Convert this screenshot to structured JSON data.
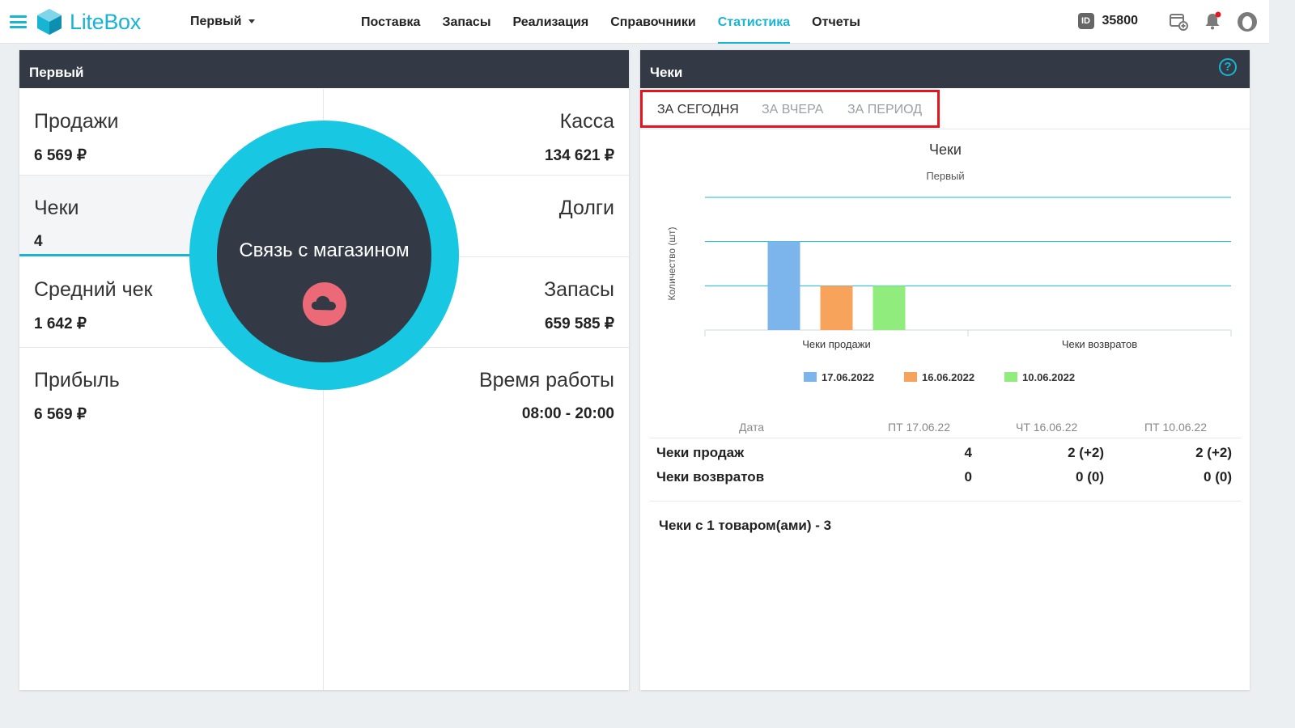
{
  "app": {
    "logo_text": "LiteBox",
    "store_selector": "Первый",
    "nav": [
      {
        "label": "Поставка",
        "active": false
      },
      {
        "label": "Запасы",
        "active": false
      },
      {
        "label": "Реализация",
        "active": false
      },
      {
        "label": "Справочники",
        "active": false
      },
      {
        "label": "Статистика",
        "active": true
      },
      {
        "label": "Отчеты",
        "active": false
      }
    ],
    "id_badge": "ID",
    "id_value": "35800",
    "accent_color": "#18b4d4",
    "header_color": "#343a45",
    "icons": [
      "menu-icon",
      "id-icon",
      "register-add-icon",
      "bell-icon",
      "profile-icon"
    ]
  },
  "left_panel": {
    "title": "Первый",
    "cells": {
      "sales": {
        "label": "Продажи",
        "value": "6 569 ₽"
      },
      "cash": {
        "label": "Касса",
        "value": "134 621 ₽"
      },
      "checks": {
        "label": "Чеки",
        "value": "4"
      },
      "debts": {
        "label": "Долги",
        "value": ""
      },
      "avg_check": {
        "label": "Средний чек",
        "value": "1 642 ₽"
      },
      "stock": {
        "label": "Запасы",
        "value": "659 585 ₽"
      },
      "profit": {
        "label": "Прибыль",
        "value": "6 569 ₽"
      },
      "hours": {
        "label": "Время работы",
        "value": "08:00 - 20:00"
      }
    },
    "store_link": {
      "label": "Связь с магазином",
      "icon": "cloud-icon"
    }
  },
  "right_panel": {
    "title": "Чеки",
    "tabs": [
      {
        "label": "ЗА СЕГОДНЯ",
        "active": true
      },
      {
        "label": "ЗА ВЧЕРА",
        "active": false
      },
      {
        "label": "ЗА ПЕРИОД",
        "active": false
      }
    ],
    "table": {
      "headers": [
        "Дата",
        "ПТ 17.06.22",
        "ЧТ 16.06.22",
        "ПТ 10.06.22"
      ],
      "rows": [
        {
          "label": "Чеки продаж",
          "values": [
            "4",
            "2 (+2)",
            "2 (+2)"
          ]
        },
        {
          "label": "Чеки возвратов",
          "values": [
            "0",
            "0 (0)",
            "0 (0)"
          ]
        }
      ]
    },
    "note": "Чеки с 1 товаром(ами) - 3"
  },
  "chart_data": {
    "type": "bar",
    "title": "Чеки",
    "subtitle": "Первый",
    "ylabel": "Количество (шт)",
    "xlabel": "",
    "categories": [
      "Чеки продажи",
      "Чеки возвратов"
    ],
    "series": [
      {
        "name": "17.06.2022",
        "values": [
          4,
          0
        ],
        "color": "#7cb5ec"
      },
      {
        "name": "16.06.2022",
        "values": [
          2,
          0
        ],
        "color": "#f7a35c"
      },
      {
        "name": "10.06.2022",
        "values": [
          2,
          0
        ],
        "color": "#90ed7d"
      }
    ],
    "ylim": [
      0,
      6
    ],
    "grid": true,
    "legend": "bottom"
  }
}
